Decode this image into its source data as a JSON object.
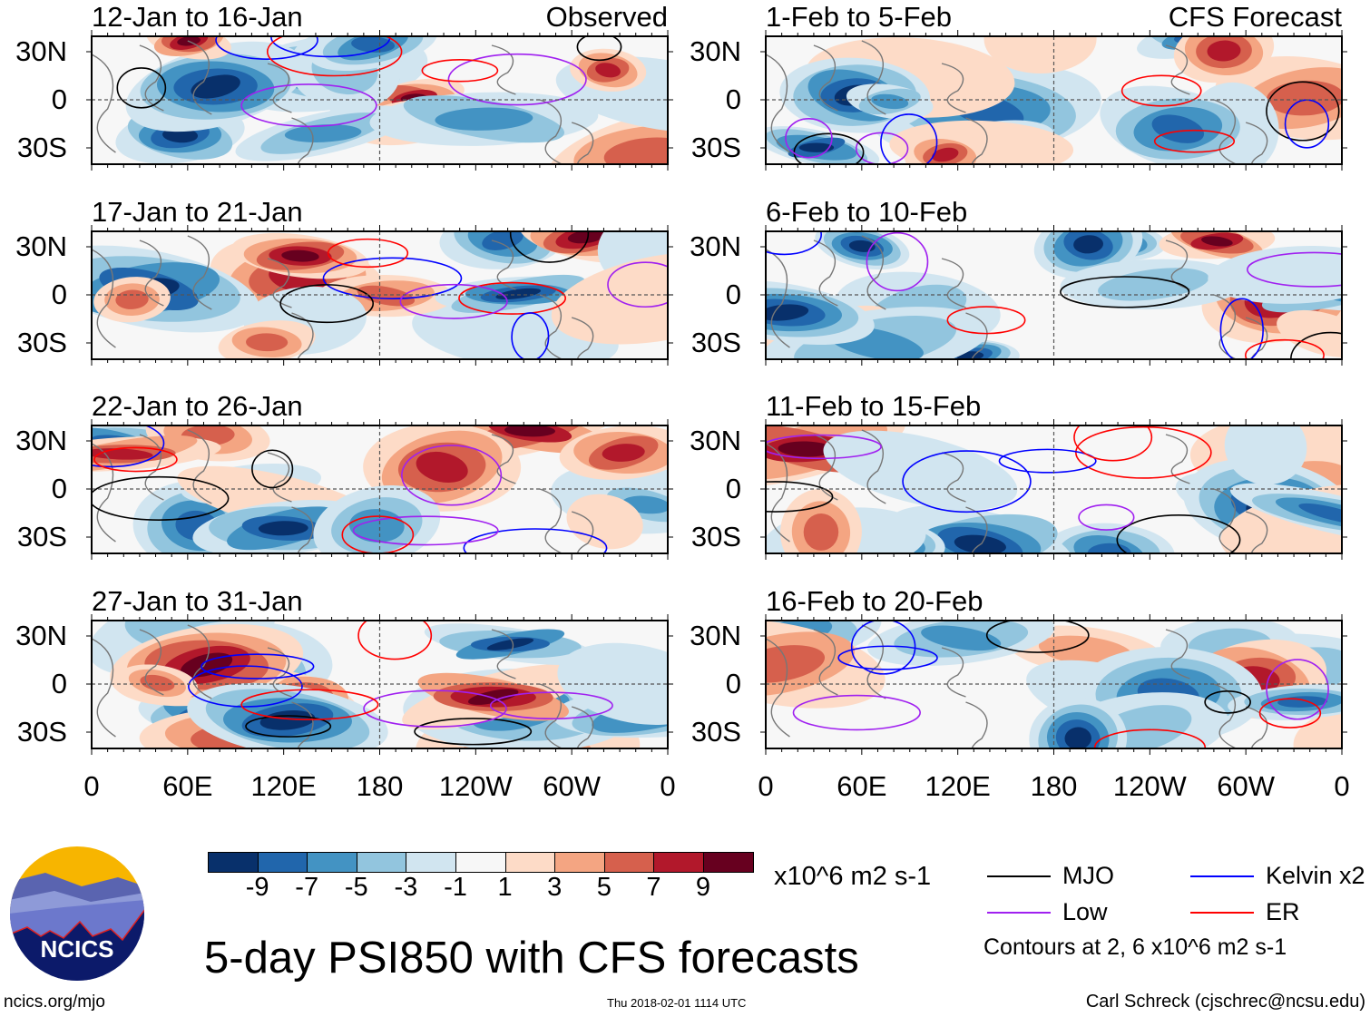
{
  "panels": [
    {
      "title": "12-Jan to 16-Jan",
      "label": "Observed",
      "column": "left"
    },
    {
      "title": "17-Jan to 21-Jan",
      "label": "",
      "column": "left"
    },
    {
      "title": "22-Jan to 26-Jan",
      "label": "",
      "column": "left"
    },
    {
      "title": "27-Jan to 31-Jan",
      "label": "",
      "column": "left"
    },
    {
      "title": "1-Feb to 5-Feb",
      "label": "CFS Forecast",
      "column": "right"
    },
    {
      "title": "6-Feb to 10-Feb",
      "label": "",
      "column": "right"
    },
    {
      "title": "11-Feb to 15-Feb",
      "label": "",
      "column": "right"
    },
    {
      "title": "16-Feb to 20-Feb",
      "label": "",
      "column": "right"
    }
  ],
  "lat_ticks": [
    "30N",
    "0",
    "30S"
  ],
  "lon_ticks": [
    "0",
    "60E",
    "120E",
    "180",
    "120W",
    "60W",
    "0"
  ],
  "colorbar": {
    "colors": [
      "#08306b",
      "#2166ac",
      "#4393c3",
      "#92c5de",
      "#d1e5f0",
      "#f7f7f7",
      "#fddbc7",
      "#f4a582",
      "#d6604d",
      "#b2182b",
      "#67001f"
    ],
    "labels": [
      "-9",
      "-7",
      "-5",
      "-3",
      "-1",
      "1",
      "3",
      "5",
      "7",
      "9"
    ],
    "units": "x10^6 m2 s-1"
  },
  "legend": {
    "items": [
      {
        "label": "MJO",
        "color": "#000000"
      },
      {
        "label": "Kelvin x2",
        "color": "#0000ff"
      },
      {
        "label": "Low",
        "color": "#a020f0"
      },
      {
        "label": "ER",
        "color": "#ff0000"
      }
    ],
    "contours_note": "Contours at 2, 6 x10^6 m2 s-1"
  },
  "title": "5-day PSI850 with CFS forecasts",
  "logo_text": "NCICS",
  "url": "ncics.org/mjo",
  "timestamp": "Thu 2018-02-01 1114 UTC",
  "author": "Carl Schreck (cjschrec@ncsu.edu)"
}
